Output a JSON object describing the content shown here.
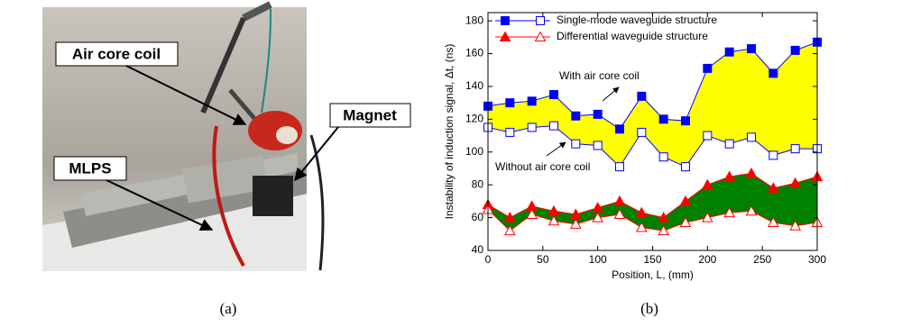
{
  "photo": {
    "labels": [
      "Air core coil",
      "Magnet",
      "MLPS"
    ]
  },
  "captions": [
    "(a)",
    "(b)"
  ],
  "chart_data": {
    "type": "line",
    "x_label": "Position, L, (mm)",
    "y_label": "Instability of induction signal, Δt, (ns)",
    "x": [
      0,
      20,
      40,
      60,
      80,
      100,
      120,
      140,
      160,
      180,
      200,
      220,
      240,
      260,
      280,
      300
    ],
    "series": [
      {
        "name": "Single-mode waveguide structure",
        "color": "#0000ff",
        "fill": "#ffff00",
        "values": [
          128,
          130,
          131,
          135,
          122,
          123,
          114,
          134,
          120,
          119,
          151,
          161,
          163,
          148,
          162,
          167
        ],
        "values_open": [
          115,
          112,
          115,
          116,
          105,
          104,
          91,
          112,
          97,
          91,
          110,
          105,
          109,
          98,
          102,
          102
        ]
      },
      {
        "name": "Differential waveguide structure",
        "color": "#ff0000",
        "fill": "#008000",
        "values": [
          68,
          60,
          67,
          64,
          62,
          66,
          70,
          63,
          60,
          70,
          80,
          85,
          87,
          78,
          81,
          85
        ],
        "values_open": [
          65,
          52,
          62,
          58,
          56,
          60,
          62,
          54,
          52,
          57,
          60,
          63,
          64,
          57,
          55,
          57
        ]
      }
    ],
    "annotations": [
      "With air core coil",
      "Without air core coil"
    ],
    "xlim": [
      0,
      300
    ],
    "ylim": [
      40,
      185
    ],
    "xticks": [
      0,
      50,
      100,
      150,
      200,
      250,
      300
    ],
    "yticks": [
      40,
      60,
      80,
      100,
      120,
      140,
      160,
      180
    ],
    "legend": "upper left"
  }
}
